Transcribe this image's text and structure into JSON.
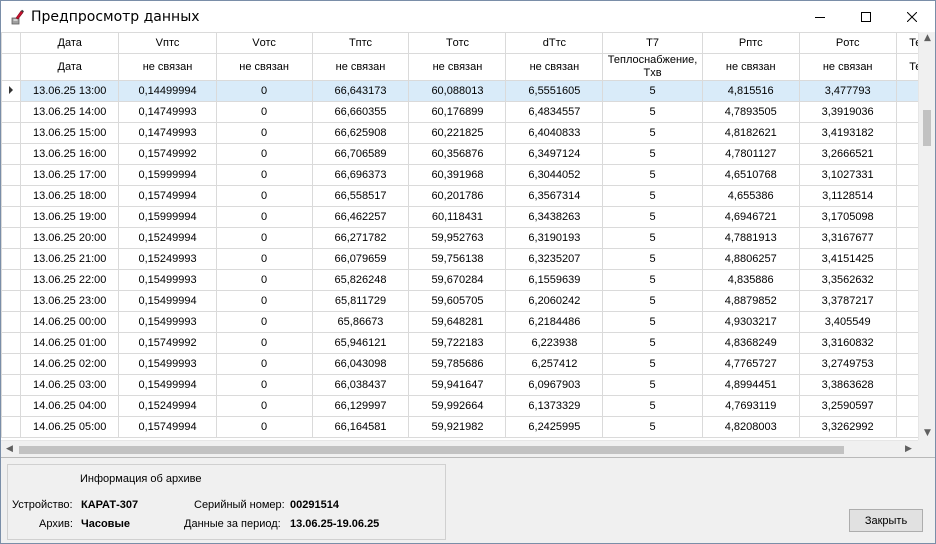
{
  "window": {
    "title": "Предпросмотр данных",
    "min_glyph": "—",
    "max_glyph": "☐",
    "close_glyph": "✕"
  },
  "grid": {
    "headers": [
      "Дата",
      "Vптс",
      "Vотс",
      "Tптс",
      "Tотс",
      "dTтс",
      "T7",
      "Pптс",
      "Pотс",
      "Те"
    ],
    "subheaders": [
      "Дата",
      "не связан",
      "не связан",
      "не связан",
      "не связан",
      "не связан",
      "Теплоснабжение, Tхв",
      "не связан",
      "не связан",
      "Те"
    ],
    "rows": [
      [
        "13.06.25 13:00",
        "0,14499994",
        "0",
        "66,643173",
        "60,088013",
        "6,5551605",
        "5",
        "4,815516",
        "3,477793"
      ],
      [
        "13.06.25 14:00",
        "0,14749993",
        "0",
        "66,660355",
        "60,176899",
        "6,4834557",
        "5",
        "4,7893505",
        "3,3919036"
      ],
      [
        "13.06.25 15:00",
        "0,14749993",
        "0",
        "66,625908",
        "60,221825",
        "6,4040833",
        "5",
        "4,8182621",
        "3,4193182"
      ],
      [
        "13.06.25 16:00",
        "0,15749992",
        "0",
        "66,706589",
        "60,356876",
        "6,3497124",
        "5",
        "4,7801127",
        "3,2666521"
      ],
      [
        "13.06.25 17:00",
        "0,15999994",
        "0",
        "66,696373",
        "60,391968",
        "6,3044052",
        "5",
        "4,6510768",
        "3,1027331"
      ],
      [
        "13.06.25 18:00",
        "0,15749994",
        "0",
        "66,558517",
        "60,201786",
        "6,3567314",
        "5",
        "4,655386",
        "3,1128514"
      ],
      [
        "13.06.25 19:00",
        "0,15999994",
        "0",
        "66,462257",
        "60,118431",
        "6,3438263",
        "5",
        "4,6946721",
        "3,1705098"
      ],
      [
        "13.06.25 20:00",
        "0,15249994",
        "0",
        "66,271782",
        "59,952763",
        "6,3190193",
        "5",
        "4,7881913",
        "3,3167677"
      ],
      [
        "13.06.25 21:00",
        "0,15249993",
        "0",
        "66,079659",
        "59,756138",
        "6,3235207",
        "5",
        "4,8806257",
        "3,4151425"
      ],
      [
        "13.06.25 22:00",
        "0,15499993",
        "0",
        "65,826248",
        "59,670284",
        "6,1559639",
        "5",
        "4,835886",
        "3,3562632"
      ],
      [
        "13.06.25 23:00",
        "0,15499994",
        "0",
        "65,811729",
        "59,605705",
        "6,2060242",
        "5",
        "4,8879852",
        "3,3787217"
      ],
      [
        "14.06.25 00:00",
        "0,15499993",
        "0",
        "65,86673",
        "59,648281",
        "6,2184486",
        "5",
        "4,9303217",
        "3,405549"
      ],
      [
        "14.06.25 01:00",
        "0,15749992",
        "0",
        "65,946121",
        "59,722183",
        "6,223938",
        "5",
        "4,8368249",
        "3,3160832"
      ],
      [
        "14.06.25 02:00",
        "0,15499993",
        "0",
        "66,043098",
        "59,785686",
        "6,257412",
        "5",
        "4,7765727",
        "3,2749753"
      ],
      [
        "14.06.25 03:00",
        "0,15499994",
        "0",
        "66,038437",
        "59,941647",
        "6,0967903",
        "5",
        "4,8994451",
        "3,3863628"
      ],
      [
        "14.06.25 04:00",
        "0,15249994",
        "0",
        "66,129997",
        "59,992664",
        "6,1373329",
        "5",
        "4,7693119",
        "3,2590597"
      ],
      [
        "14.06.25 05:00",
        "0,15749994",
        "0",
        "66,164581",
        "59,921982",
        "6,2425995",
        "5",
        "4,8208003",
        "3,3262992"
      ]
    ]
  },
  "info": {
    "title": "Информация об архиве",
    "device_label": "Устройство:",
    "device_value": "КАРАТ-307",
    "serial_label": "Серийный номер:",
    "serial_value": "00291514",
    "archive_label": "Архив:",
    "archive_value": "Часовые",
    "period_label": "Данные за период:",
    "period_value": "13.06.25-19.06.25"
  },
  "buttons": {
    "close_label": "Закрыть"
  },
  "colors": {
    "selected_row": "#d9ebf9",
    "grid_line": "#dadada"
  }
}
